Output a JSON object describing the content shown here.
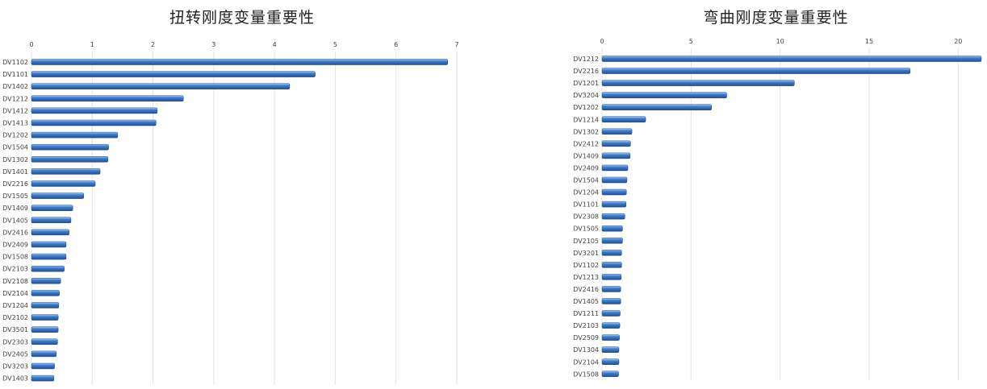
{
  "chart_data": [
    {
      "type": "bar",
      "orientation": "horizontal",
      "title": "扭转刚度变量重要性",
      "xlim": [
        0,
        7
      ],
      "ticks": [
        0,
        1,
        2,
        3,
        4,
        5,
        6,
        7
      ],
      "grid": true,
      "legend": "none",
      "bar_color": "#3f7fd0",
      "categories": [
        "DV1102",
        "DV1101",
        "DV1402",
        "DV1212",
        "DV1412",
        "DV1413",
        "DV1202",
        "DV1504",
        "DV1302",
        "DV1401",
        "DV2216",
        "DV1505",
        "DV1409",
        "DV1405",
        "DV2416",
        "DV2409",
        "DV1508",
        "DV2103",
        "DV2108",
        "DV2104",
        "DV1204",
        "DV2102",
        "DV3501",
        "DV2303",
        "DV2405",
        "DV3203",
        "DV1403"
      ],
      "values": [
        6.85,
        4.67,
        4.25,
        2.5,
        2.07,
        2.05,
        1.42,
        1.27,
        1.26,
        1.13,
        1.05,
        0.86,
        0.68,
        0.65,
        0.62,
        0.57,
        0.57,
        0.54,
        0.48,
        0.46,
        0.45,
        0.44,
        0.44,
        0.43,
        0.41,
        0.38,
        0.37
      ]
    },
    {
      "type": "bar",
      "orientation": "horizontal",
      "title": "弯曲刚度变量重要性",
      "xlim": [
        0,
        21.3
      ],
      "ticks": [
        0,
        5,
        10,
        15,
        20
      ],
      "grid": true,
      "legend": "none",
      "bar_color": "#3f7fd0",
      "categories": [
        "DV1212",
        "DV2216",
        "DV1201",
        "DV3204",
        "DV1202",
        "DV1214",
        "DV1302",
        "DV2412",
        "DV1409",
        "DV2409",
        "DV1504",
        "DV1204",
        "DV1101",
        "DV2308",
        "DV1505",
        "DV2105",
        "DV3201",
        "DV1102",
        "DV1213",
        "DV2416",
        "DV1405",
        "DV1211",
        "DV2103",
        "DV2509",
        "DV1304",
        "DV2104",
        "DV1508"
      ],
      "values": [
        21.3,
        17.3,
        10.8,
        7.0,
        6.15,
        2.45,
        1.68,
        1.6,
        1.58,
        1.45,
        1.4,
        1.37,
        1.35,
        1.28,
        1.15,
        1.15,
        1.1,
        1.1,
        1.08,
        1.05,
        1.05,
        1.02,
        1.0,
        0.98,
        0.95,
        0.95,
        0.93
      ]
    }
  ]
}
